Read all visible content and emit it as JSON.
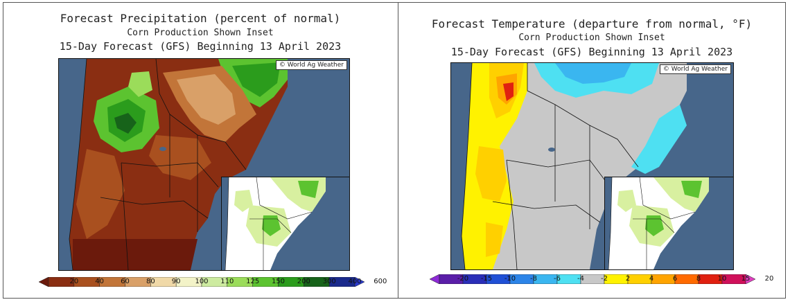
{
  "precip_panel": {
    "title": "Forecast Precipitation (percent of normal)",
    "subtitle": "Corn Production Shown Inset",
    "forecast_line": "15-Day Forecast (GFS) Beginning 13 April 2023",
    "credit": "© World Ag Weather",
    "colorbar": {
      "labels": [
        "20",
        "40",
        "60",
        "80",
        "90",
        "100",
        "110",
        "125",
        "150",
        "200",
        "300",
        "400",
        "600"
      ],
      "colors": [
        "#6b1a0c",
        "#8a2e12",
        "#a9501f",
        "#c27539",
        "#d9a068",
        "#f0d9a8",
        "#f3f3c8",
        "#cdeba0",
        "#9bdc5a",
        "#5cc330",
        "#2b9c1c",
        "#17631a",
        "#1a2a8c",
        "#2a3acf"
      ]
    }
  },
  "temp_panel": {
    "title": "Forecast Temperature (departure from normal, °F)",
    "subtitle": "Corn Production Shown Inset",
    "forecast_line": "15-Day Forecast (GFS) Beginning 13 April 2023",
    "credit": "© World Ag Weather",
    "colorbar": {
      "labels": [
        "-20",
        "-15",
        "-10",
        "-8",
        "-6",
        "-4",
        "-2",
        "2",
        "4",
        "6",
        "8",
        "10",
        "15",
        "20"
      ],
      "colors": [
        "#8d2ad6",
        "#5a1ea8",
        "#2a2eb8",
        "#2050d6",
        "#2c84e8",
        "#3ab6f0",
        "#4ee0f2",
        "#c8c8c8",
        "#fff200",
        "#ffd000",
        "#ffa400",
        "#ff6a00",
        "#e02010",
        "#d0105a",
        "#e040c0"
      ]
    }
  }
}
